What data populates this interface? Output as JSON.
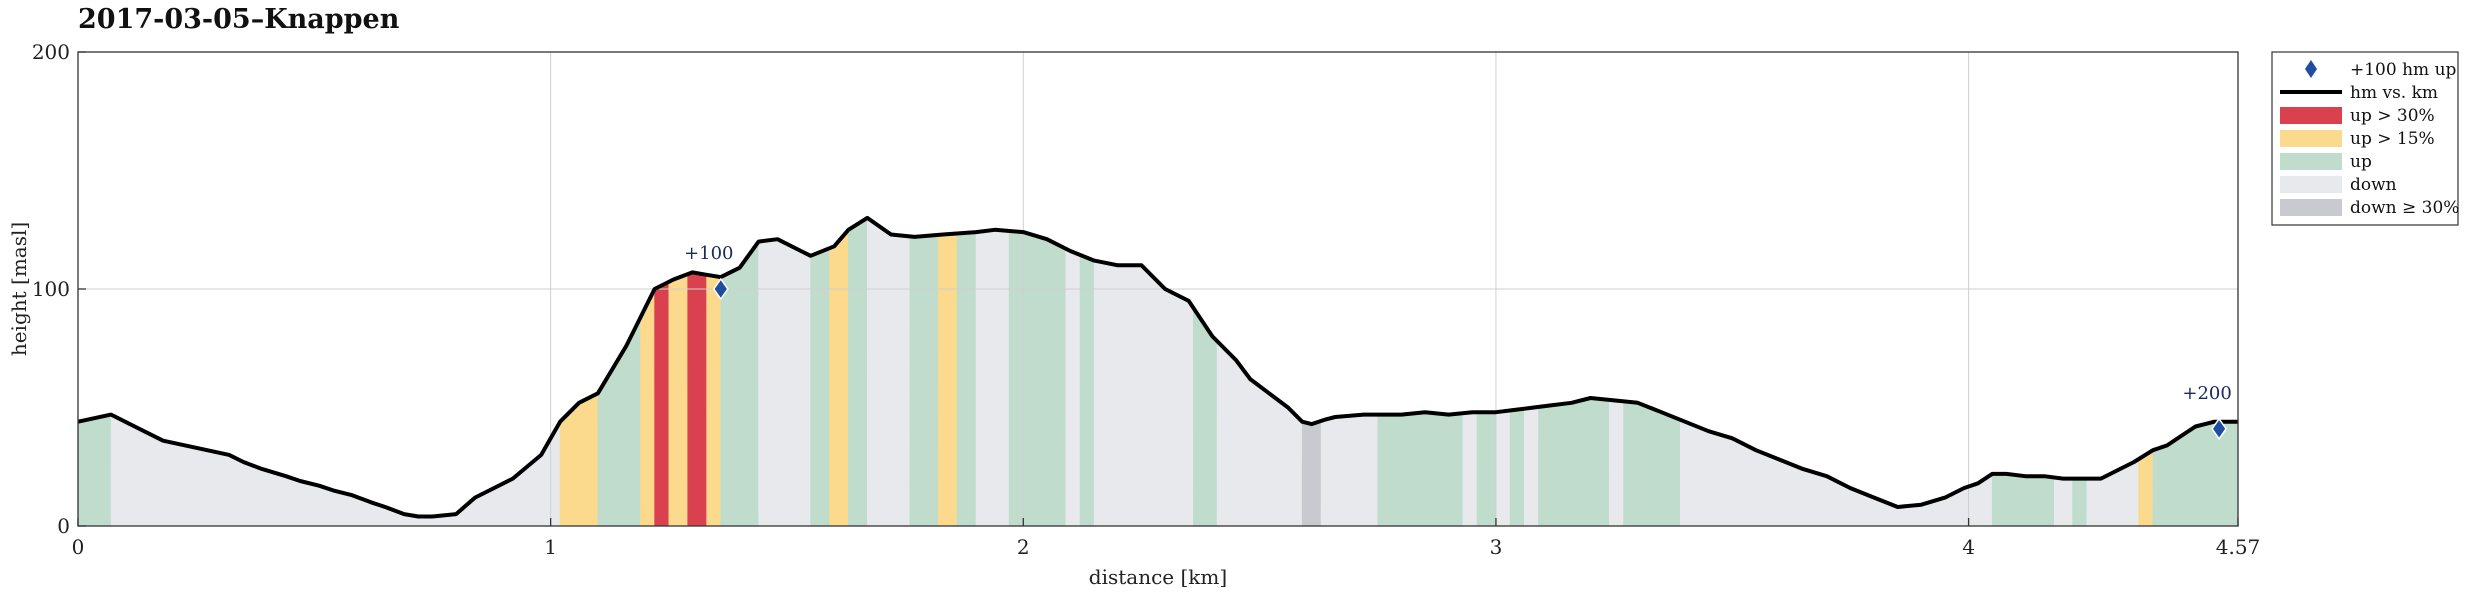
{
  "chart_data": {
    "type": "area",
    "title": "2017-03-05–Knappen",
    "xlabel": "distance [km]",
    "ylabel": "height [masl]",
    "xlim": [
      0,
      4.57
    ],
    "ylim": [
      0,
      200
    ],
    "xticks": [
      0,
      1,
      2,
      3,
      4,
      4.57
    ],
    "xtick_labels": [
      "0",
      "1",
      "2",
      "3",
      "4",
      "4.57"
    ],
    "yticks": [
      0,
      100,
      200
    ],
    "ytick_labels": [
      "0",
      "100",
      "200"
    ],
    "grid": true,
    "legend_position": "outside-right-top",
    "colors": {
      "line": "#000000",
      "marker": "#1f4e9e",
      "up30": "#d9414f",
      "up15": "#fbd98d",
      "up": "#bfdccc",
      "down": "#e8e9ec",
      "down30": "#c8cad0"
    },
    "profile": {
      "x": [
        0,
        0.07,
        0.12,
        0.18,
        0.25,
        0.32,
        0.35,
        0.39,
        0.44,
        0.47,
        0.51,
        0.54,
        0.58,
        0.62,
        0.65,
        0.69,
        0.72,
        0.75,
        0.8,
        0.84,
        0.88,
        0.92,
        0.98,
        1.02,
        1.06,
        1.1,
        1.16,
        1.19,
        1.22,
        1.26,
        1.3,
        1.33,
        1.36,
        1.4,
        1.44,
        1.48,
        1.53,
        1.55,
        1.6,
        1.63,
        1.67,
        1.72,
        1.77,
        1.83,
        1.9,
        1.94,
        2.0,
        2.05,
        2.1,
        2.15,
        2.2,
        2.25,
        2.3,
        2.35,
        2.38,
        2.4,
        2.45,
        2.48,
        2.52,
        2.56,
        2.59,
        2.61,
        2.64,
        2.66,
        2.72,
        2.76,
        2.8,
        2.85,
        2.9,
        2.95,
        3.0,
        3.04,
        3.08,
        3.12,
        3.16,
        3.2,
        3.25,
        3.3,
        3.35,
        3.4,
        3.45,
        3.5,
        3.55,
        3.6,
        3.65,
        3.7,
        3.75,
        3.8,
        3.85,
        3.9,
        3.95,
        3.99,
        4.02,
        4.05,
        4.08,
        4.12,
        4.16,
        4.2,
        4.24,
        4.28,
        4.32,
        4.35,
        4.39,
        4.42,
        4.45,
        4.48,
        4.52,
        4.57
      ],
      "y": [
        44,
        47,
        42,
        36,
        33,
        30,
        27,
        24,
        21,
        19,
        17,
        15,
        13,
        10,
        8,
        5,
        4,
        4,
        5,
        12,
        16,
        20,
        30,
        44,
        52,
        56,
        76,
        88,
        100,
        104,
        107,
        106,
        105,
        109,
        120,
        121,
        116,
        114,
        118,
        125,
        130,
        123,
        122,
        123,
        124,
        125,
        124,
        121,
        116,
        112,
        110,
        110,
        100,
        95,
        86,
        80,
        70,
        62,
        56,
        50,
        44,
        43,
        45,
        46,
        47,
        47,
        47,
        48,
        47,
        48,
        48,
        49,
        50,
        51,
        52,
        54,
        53,
        52,
        48,
        44,
        40,
        37,
        32,
        28,
        24,
        21,
        16,
        12,
        8,
        9,
        12,
        16,
        18,
        22,
        22,
        21,
        21,
        20,
        20,
        20,
        24,
        27,
        32,
        34,
        38,
        42,
        44,
        44
      ]
    },
    "segments": [
      {
        "x0": 0.0,
        "x1": 0.07,
        "category": "up"
      },
      {
        "x0": 0.07,
        "x1": 1.02,
        "category": "down"
      },
      {
        "x0": 1.02,
        "x1": 1.1,
        "category": "up15"
      },
      {
        "x0": 1.1,
        "x1": 1.19,
        "category": "up"
      },
      {
        "x0": 1.19,
        "x1": 1.22,
        "category": "up15"
      },
      {
        "x0": 1.22,
        "x1": 1.25,
        "category": "up30"
      },
      {
        "x0": 1.25,
        "x1": 1.29,
        "category": "up15"
      },
      {
        "x0": 1.29,
        "x1": 1.33,
        "category": "up30"
      },
      {
        "x0": 1.33,
        "x1": 1.36,
        "category": "up15"
      },
      {
        "x0": 1.36,
        "x1": 1.44,
        "category": "up"
      },
      {
        "x0": 1.44,
        "x1": 1.55,
        "category": "down"
      },
      {
        "x0": 1.55,
        "x1": 1.59,
        "category": "up"
      },
      {
        "x0": 1.59,
        "x1": 1.63,
        "category": "up15"
      },
      {
        "x0": 1.63,
        "x1": 1.67,
        "category": "up"
      },
      {
        "x0": 1.67,
        "x1": 1.76,
        "category": "down"
      },
      {
        "x0": 1.76,
        "x1": 1.82,
        "category": "up"
      },
      {
        "x0": 1.82,
        "x1": 1.86,
        "category": "up15"
      },
      {
        "x0": 1.86,
        "x1": 1.9,
        "category": "up"
      },
      {
        "x0": 1.9,
        "x1": 1.97,
        "category": "down"
      },
      {
        "x0": 1.97,
        "x1": 2.09,
        "category": "up"
      },
      {
        "x0": 2.09,
        "x1": 2.12,
        "category": "down"
      },
      {
        "x0": 2.12,
        "x1": 2.15,
        "category": "up"
      },
      {
        "x0": 2.15,
        "x1": 2.36,
        "category": "down"
      },
      {
        "x0": 2.36,
        "x1": 2.41,
        "category": "up"
      },
      {
        "x0": 2.41,
        "x1": 2.59,
        "category": "down"
      },
      {
        "x0": 2.59,
        "x1": 2.63,
        "category": "down30"
      },
      {
        "x0": 2.63,
        "x1": 2.75,
        "category": "down"
      },
      {
        "x0": 2.75,
        "x1": 2.93,
        "category": "up"
      },
      {
        "x0": 2.93,
        "x1": 2.96,
        "category": "down"
      },
      {
        "x0": 2.96,
        "x1": 3.0,
        "category": "up"
      },
      {
        "x0": 3.0,
        "x1": 3.03,
        "category": "down"
      },
      {
        "x0": 3.03,
        "x1": 3.06,
        "category": "up"
      },
      {
        "x0": 3.06,
        "x1": 3.09,
        "category": "down"
      },
      {
        "x0": 3.09,
        "x1": 3.24,
        "category": "up"
      },
      {
        "x0": 3.24,
        "x1": 3.27,
        "category": "down"
      },
      {
        "x0": 3.27,
        "x1": 3.39,
        "category": "up"
      },
      {
        "x0": 3.39,
        "x1": 4.18,
        "category": "down"
      },
      {
        "x0": 4.18,
        "x1": 4.22,
        "category": "down"
      },
      {
        "x0": 4.05,
        "x1": 4.18,
        "category": "up"
      },
      {
        "x0": 4.22,
        "x1": 4.25,
        "category": "up"
      },
      {
        "x0": 4.25,
        "x1": 4.36,
        "category": "down"
      },
      {
        "x0": 4.36,
        "x1": 4.39,
        "category": "up15"
      },
      {
        "x0": 4.39,
        "x1": 4.57,
        "category": "up"
      }
    ],
    "markers": [
      {
        "x": 1.36,
        "y": 100,
        "label": "+100"
      },
      {
        "x": 4.53,
        "y": 41,
        "label": "+200"
      }
    ],
    "legend": [
      {
        "key": "marker",
        "label": "+100 hm up"
      },
      {
        "key": "line",
        "label": "hm vs. km"
      },
      {
        "key": "up30",
        "label": "up > 30%"
      },
      {
        "key": "up15",
        "label": "up > 15%"
      },
      {
        "key": "up",
        "label": "up"
      },
      {
        "key": "down",
        "label": "down"
      },
      {
        "key": "down30",
        "label": "down ≥ 30%"
      }
    ]
  }
}
